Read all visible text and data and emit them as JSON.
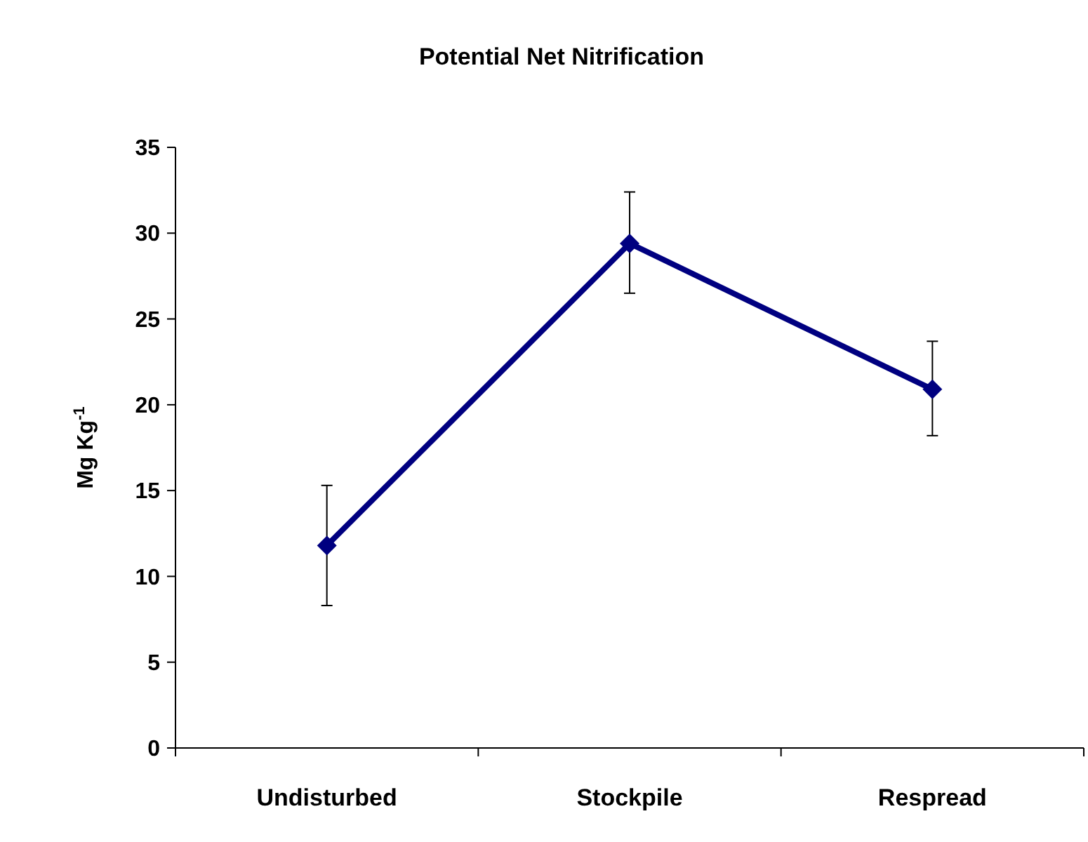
{
  "chart_data": {
    "type": "line",
    "title": "Potential Net Nitrification",
    "ylabel": "Mg Kg$^{-1}$",
    "categories": [
      "Undisturbed",
      "Stockpile",
      "Respread"
    ],
    "series": [
      {
        "color": "#000080",
        "values": [
          11.8,
          29.4,
          20.9
        ],
        "errors": [
          [
            8.3,
            15.3
          ],
          [
            26.5,
            32.4
          ],
          [
            18.2,
            23.7
          ]
        ]
      }
    ],
    "ylim": [
      0,
      35
    ],
    "yticks": [
      0,
      5,
      10,
      15,
      20,
      25,
      30,
      35
    ],
    "grid": false,
    "marker": "diamond",
    "line_style": "solid"
  }
}
